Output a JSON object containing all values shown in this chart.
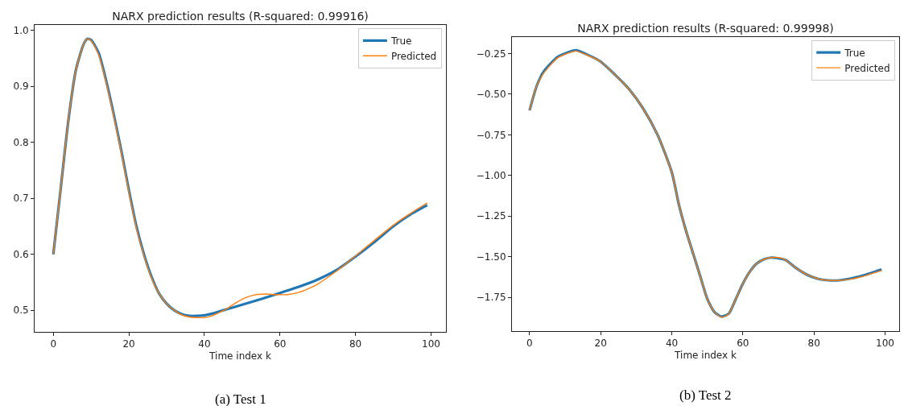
{
  "chart_data": [
    {
      "type": "line",
      "title": "NARX prediction results (R-squared: 0.99916)",
      "xlabel": "Time index k",
      "annotations": [
        "(a) Test 1"
      ],
      "grid": false,
      "legend": "top right",
      "xlim": [
        -4.95,
        103.95
      ],
      "ylim": [
        0.4614,
        1.0098
      ],
      "xticks": [
        0,
        20,
        40,
        60,
        80,
        100
      ],
      "yticks": [
        0.5,
        0.6,
        0.7,
        0.8,
        0.9,
        {
          "value": 1.0,
          "label": "1.0"
        }
      ],
      "series": [
        {
          "name": "True",
          "color": "#1f77b4",
          "x": [
            0,
            2,
            4,
            6,
            8,
            9,
            10,
            12,
            14,
            16,
            18,
            20,
            22,
            24,
            26,
            28,
            30,
            32,
            34,
            36,
            38,
            40,
            42,
            44,
            46,
            50,
            55,
            60,
            65,
            70,
            75,
            80,
            85,
            90,
            95,
            99
          ],
          "values": [
            0.6,
            0.72,
            0.84,
            0.93,
            0.975,
            0.985,
            0.983,
            0.96,
            0.91,
            0.85,
            0.785,
            0.715,
            0.65,
            0.6,
            0.56,
            0.53,
            0.512,
            0.5,
            0.493,
            0.49,
            0.49,
            0.491,
            0.494,
            0.498,
            0.502,
            0.51,
            0.52,
            0.531,
            0.542,
            0.555,
            0.572,
            0.596,
            0.622,
            0.65,
            0.673,
            0.688
          ]
        },
        {
          "name": "Predicted",
          "color": "#ff7f0e",
          "x": [
            0,
            2,
            4,
            6,
            8,
            9,
            10,
            12,
            14,
            16,
            18,
            20,
            22,
            24,
            26,
            28,
            30,
            32,
            34,
            36,
            38,
            40,
            42,
            44,
            46,
            48,
            50,
            53,
            56,
            59,
            62,
            65,
            68,
            70,
            75,
            80,
            85,
            90,
            95,
            99
          ],
          "values": [
            0.6,
            0.72,
            0.84,
            0.93,
            0.975,
            0.985,
            0.982,
            0.957,
            0.907,
            0.847,
            0.782,
            0.712,
            0.647,
            0.598,
            0.558,
            0.53,
            0.512,
            0.5,
            0.492,
            0.488,
            0.487,
            0.487,
            0.49,
            0.496,
            0.503,
            0.512,
            0.52,
            0.527,
            0.529,
            0.528,
            0.528,
            0.532,
            0.54,
            0.547,
            0.57,
            0.597,
            0.625,
            0.652,
            0.675,
            0.692
          ]
        }
      ]
    },
    {
      "type": "line",
      "title": "NARX prediction results (R-squared: 0.99998)",
      "xlabel": "Time index k",
      "annotations": [
        "(b) Test 2"
      ],
      "grid": false,
      "legend": "top right",
      "xlim": [
        -4.95,
        103.95
      ],
      "ylim": [
        -1.957,
        -0.149
      ],
      "xticks": [
        0,
        20,
        40,
        60,
        80,
        100
      ],
      "yticks": [
        {
          "value": -1.75,
          "label": "−1.75"
        },
        {
          "value": -1.5,
          "label": "−1.50"
        },
        {
          "value": -1.25,
          "label": "−1.25"
        },
        {
          "value": -1.0,
          "label": "−1.00"
        },
        {
          "value": -0.75,
          "label": "−0.75"
        },
        {
          "value": -0.5,
          "label": "−0.50"
        },
        {
          "value": -0.25,
          "label": "−0.25"
        }
      ],
      "series": [
        {
          "name": "True",
          "color": "#1f77b4",
          "x": [
            0,
            2,
            4,
            8,
            13,
            16,
            20,
            24,
            28,
            32,
            36,
            40,
            42,
            44,
            46,
            48,
            50,
            52,
            54,
            56,
            58,
            60,
            62,
            64,
            66,
            68,
            70,
            72,
            75,
            78,
            81,
            84,
            87,
            90,
            93,
            96,
            99
          ],
          "values": [
            -0.6,
            -0.45,
            -0.36,
            -0.27,
            -0.23,
            -0.255,
            -0.3,
            -0.38,
            -0.47,
            -0.59,
            -0.75,
            -0.98,
            -1.18,
            -1.34,
            -1.48,
            -1.62,
            -1.76,
            -1.84,
            -1.868,
            -1.85,
            -1.76,
            -1.665,
            -1.59,
            -1.54,
            -1.515,
            -1.505,
            -1.51,
            -1.52,
            -1.57,
            -1.61,
            -1.635,
            -1.645,
            -1.645,
            -1.635,
            -1.62,
            -1.6,
            -1.578
          ]
        },
        {
          "name": "Predicted",
          "color": "#ff7f0e",
          "x": [
            0,
            2,
            4,
            8,
            13,
            16,
            20,
            24,
            28,
            32,
            36,
            40,
            42,
            44,
            46,
            48,
            50,
            52,
            54,
            56,
            58,
            60,
            62,
            64,
            66,
            68,
            70,
            72,
            75,
            78,
            81,
            84,
            87,
            90,
            93,
            96,
            99
          ],
          "values": [
            -0.6,
            -0.45,
            -0.37,
            -0.275,
            -0.235,
            -0.258,
            -0.3,
            -0.38,
            -0.47,
            -0.59,
            -0.75,
            -0.98,
            -1.18,
            -1.34,
            -1.48,
            -1.62,
            -1.76,
            -1.84,
            -1.872,
            -1.85,
            -1.76,
            -1.665,
            -1.59,
            -1.54,
            -1.515,
            -1.505,
            -1.505,
            -1.52,
            -1.57,
            -1.61,
            -1.635,
            -1.645,
            -1.645,
            -1.638,
            -1.625,
            -1.605,
            -1.585
          ]
        }
      ]
    }
  ]
}
